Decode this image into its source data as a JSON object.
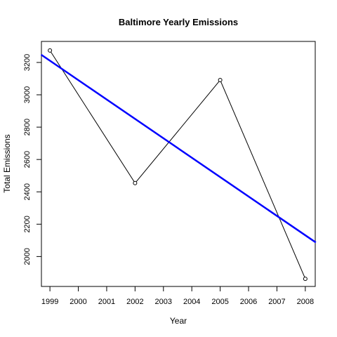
{
  "chart_data": {
    "type": "line",
    "title": "Baltimore Yearly Emissions",
    "xlabel": "Year",
    "ylabel": "Total Emissions",
    "x": [
      1999,
      2002,
      2005,
      2008
    ],
    "series": [
      {
        "values": [
          3274,
          2454,
          3091,
          1862
        ],
        "color": "#000000",
        "marker": "open-circle"
      }
    ],
    "trend_line": {
      "x": [
        1998.69,
        2008.37
      ],
      "y": [
        3248,
        2087
      ],
      "color": "#0000ff"
    },
    "xlim": [
      1998.7,
      2008.35
    ],
    "ylim": [
      1815,
      3330
    ],
    "xticks": [
      "1999",
      "2000",
      "2001",
      "2002",
      "2003",
      "2004",
      "2005",
      "2006",
      "2007",
      "2008"
    ],
    "yticks": [
      "2000",
      "2200",
      "2400",
      "2600",
      "2800",
      "3000",
      "3200"
    ],
    "grid": false,
    "legend": false
  }
}
